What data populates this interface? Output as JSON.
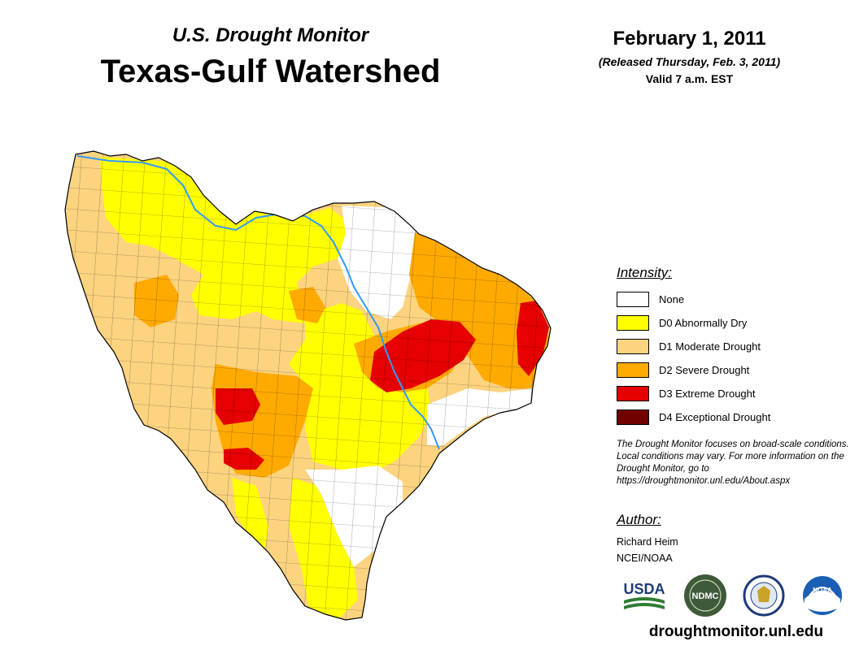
{
  "header": {
    "program": "U.S. Drought Monitor",
    "region": "Texas-Gulf Watershed",
    "date": "February 1, 2011",
    "released": "(Released Thursday, Feb. 3, 2011)",
    "valid": "Valid 7 a.m. EST"
  },
  "legend": {
    "heading": "Intensity:",
    "items": [
      {
        "label": "None",
        "color": "#ffffff"
      },
      {
        "label": "D0 Abnormally Dry",
        "color": "#ffff00"
      },
      {
        "label": "D1 Moderate Drought",
        "color": "#fcd37f"
      },
      {
        "label": "D2 Severe Drought",
        "color": "#ffaa00"
      },
      {
        "label": "D3 Extreme Drought",
        "color": "#e60000"
      },
      {
        "label": "D4 Exceptional Drought",
        "color": "#730000"
      }
    ]
  },
  "note": {
    "text": "The Drought Monitor focuses on broad-scale conditions. Local conditions may vary. For more information on the Drought Monitor, go to https://droughtmonitor.unl.edu/About.aspx"
  },
  "author": {
    "heading": "Author:",
    "name": "Richard Heim",
    "org": "NCEI/NOAA"
  },
  "logos": {
    "usda": "USDA",
    "ndmc": "NDMC",
    "noaa": "NOAA"
  },
  "footer": {
    "url": "droughtmonitor.unl.edu"
  },
  "colors": {
    "river": "#3399ff",
    "county_line": "#000000",
    "none": "#ffffff",
    "d0": "#ffff00",
    "d1": "#fcd37f",
    "d2": "#ffaa00",
    "d3": "#e60000"
  }
}
